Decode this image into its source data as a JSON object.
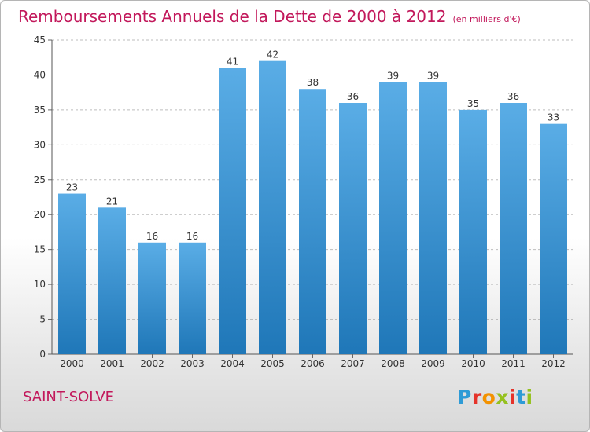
{
  "title": "Remboursements Annuels de la Dette de 2000 à 2012",
  "unit": "(en milliers d'€)",
  "commune": "SAINT-SOLVE",
  "logo": {
    "text": "Proxiti",
    "letters": [
      {
        "ch": "P",
        "color": "#2e9bd6"
      },
      {
        "ch": "r",
        "color": "#e5332a"
      },
      {
        "ch": "o",
        "color": "#f39200"
      },
      {
        "ch": "x",
        "color": "#95c11f"
      },
      {
        "ch": "i",
        "color": "#e5332a"
      },
      {
        "ch": "t",
        "color": "#2e9bd6"
      },
      {
        "ch": "i",
        "color": "#95c11f"
      }
    ]
  },
  "colors": {
    "title": "#c2185b",
    "bar_top": "#5aade6",
    "bar_bottom": "#1f77b8",
    "grid": "#bdbdbd"
  },
  "chart_data": {
    "type": "bar",
    "categories": [
      "2000",
      "2001",
      "2002",
      "2003",
      "2004",
      "2005",
      "2006",
      "2007",
      "2008",
      "2009",
      "2010",
      "2011",
      "2012"
    ],
    "values": [
      23,
      21,
      16,
      16,
      41,
      42,
      38,
      36,
      39,
      39,
      35,
      36,
      33
    ],
    "ylim": [
      0,
      45
    ],
    "yticks": [
      0,
      5,
      10,
      15,
      20,
      25,
      30,
      35,
      40,
      45
    ],
    "grid": "horizontal dashed"
  }
}
